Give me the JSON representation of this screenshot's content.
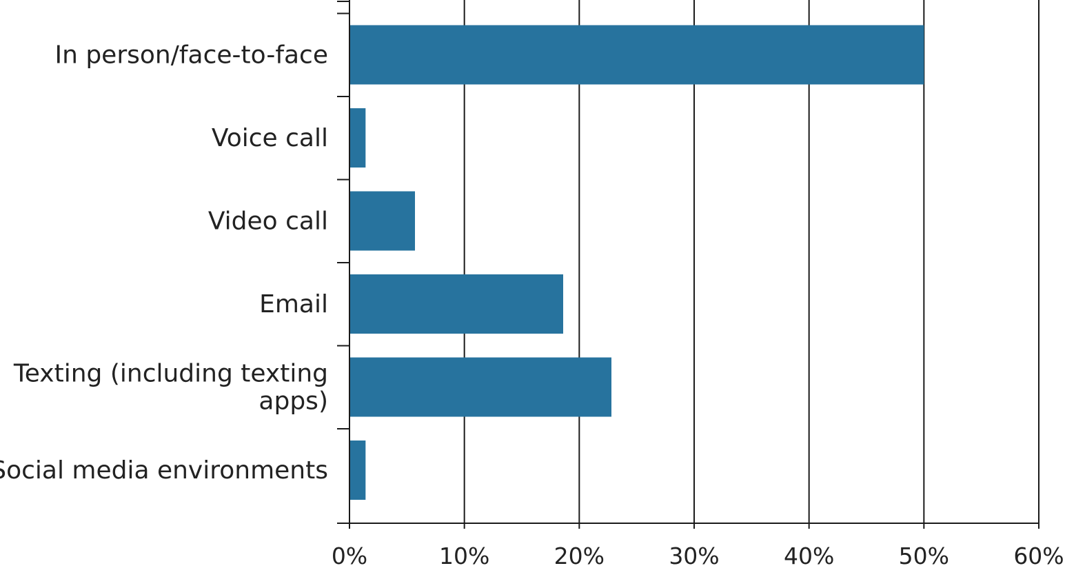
{
  "chart_data": {
    "type": "bar",
    "orientation": "horizontal",
    "title": "",
    "xlabel": "",
    "ylabel": "",
    "categories": [
      [
        "In person/face-to-face"
      ],
      [
        "Voice call"
      ],
      [
        "Video call"
      ],
      [
        "Email"
      ],
      [
        "Texting (including texting",
        "apps)"
      ],
      [
        "Social media environments"
      ]
    ],
    "values": [
      50,
      1.4,
      5.7,
      18.6,
      22.8,
      1.4
    ],
    "xlim": [
      0,
      60
    ],
    "x_ticks": [
      0,
      10,
      20,
      30,
      40,
      50,
      60
    ],
    "x_tick_labels": [
      "0%",
      "10%",
      "20%",
      "30%",
      "40%",
      "50%",
      "60%"
    ],
    "grid": "vertical",
    "bar_color": "#27739e"
  }
}
